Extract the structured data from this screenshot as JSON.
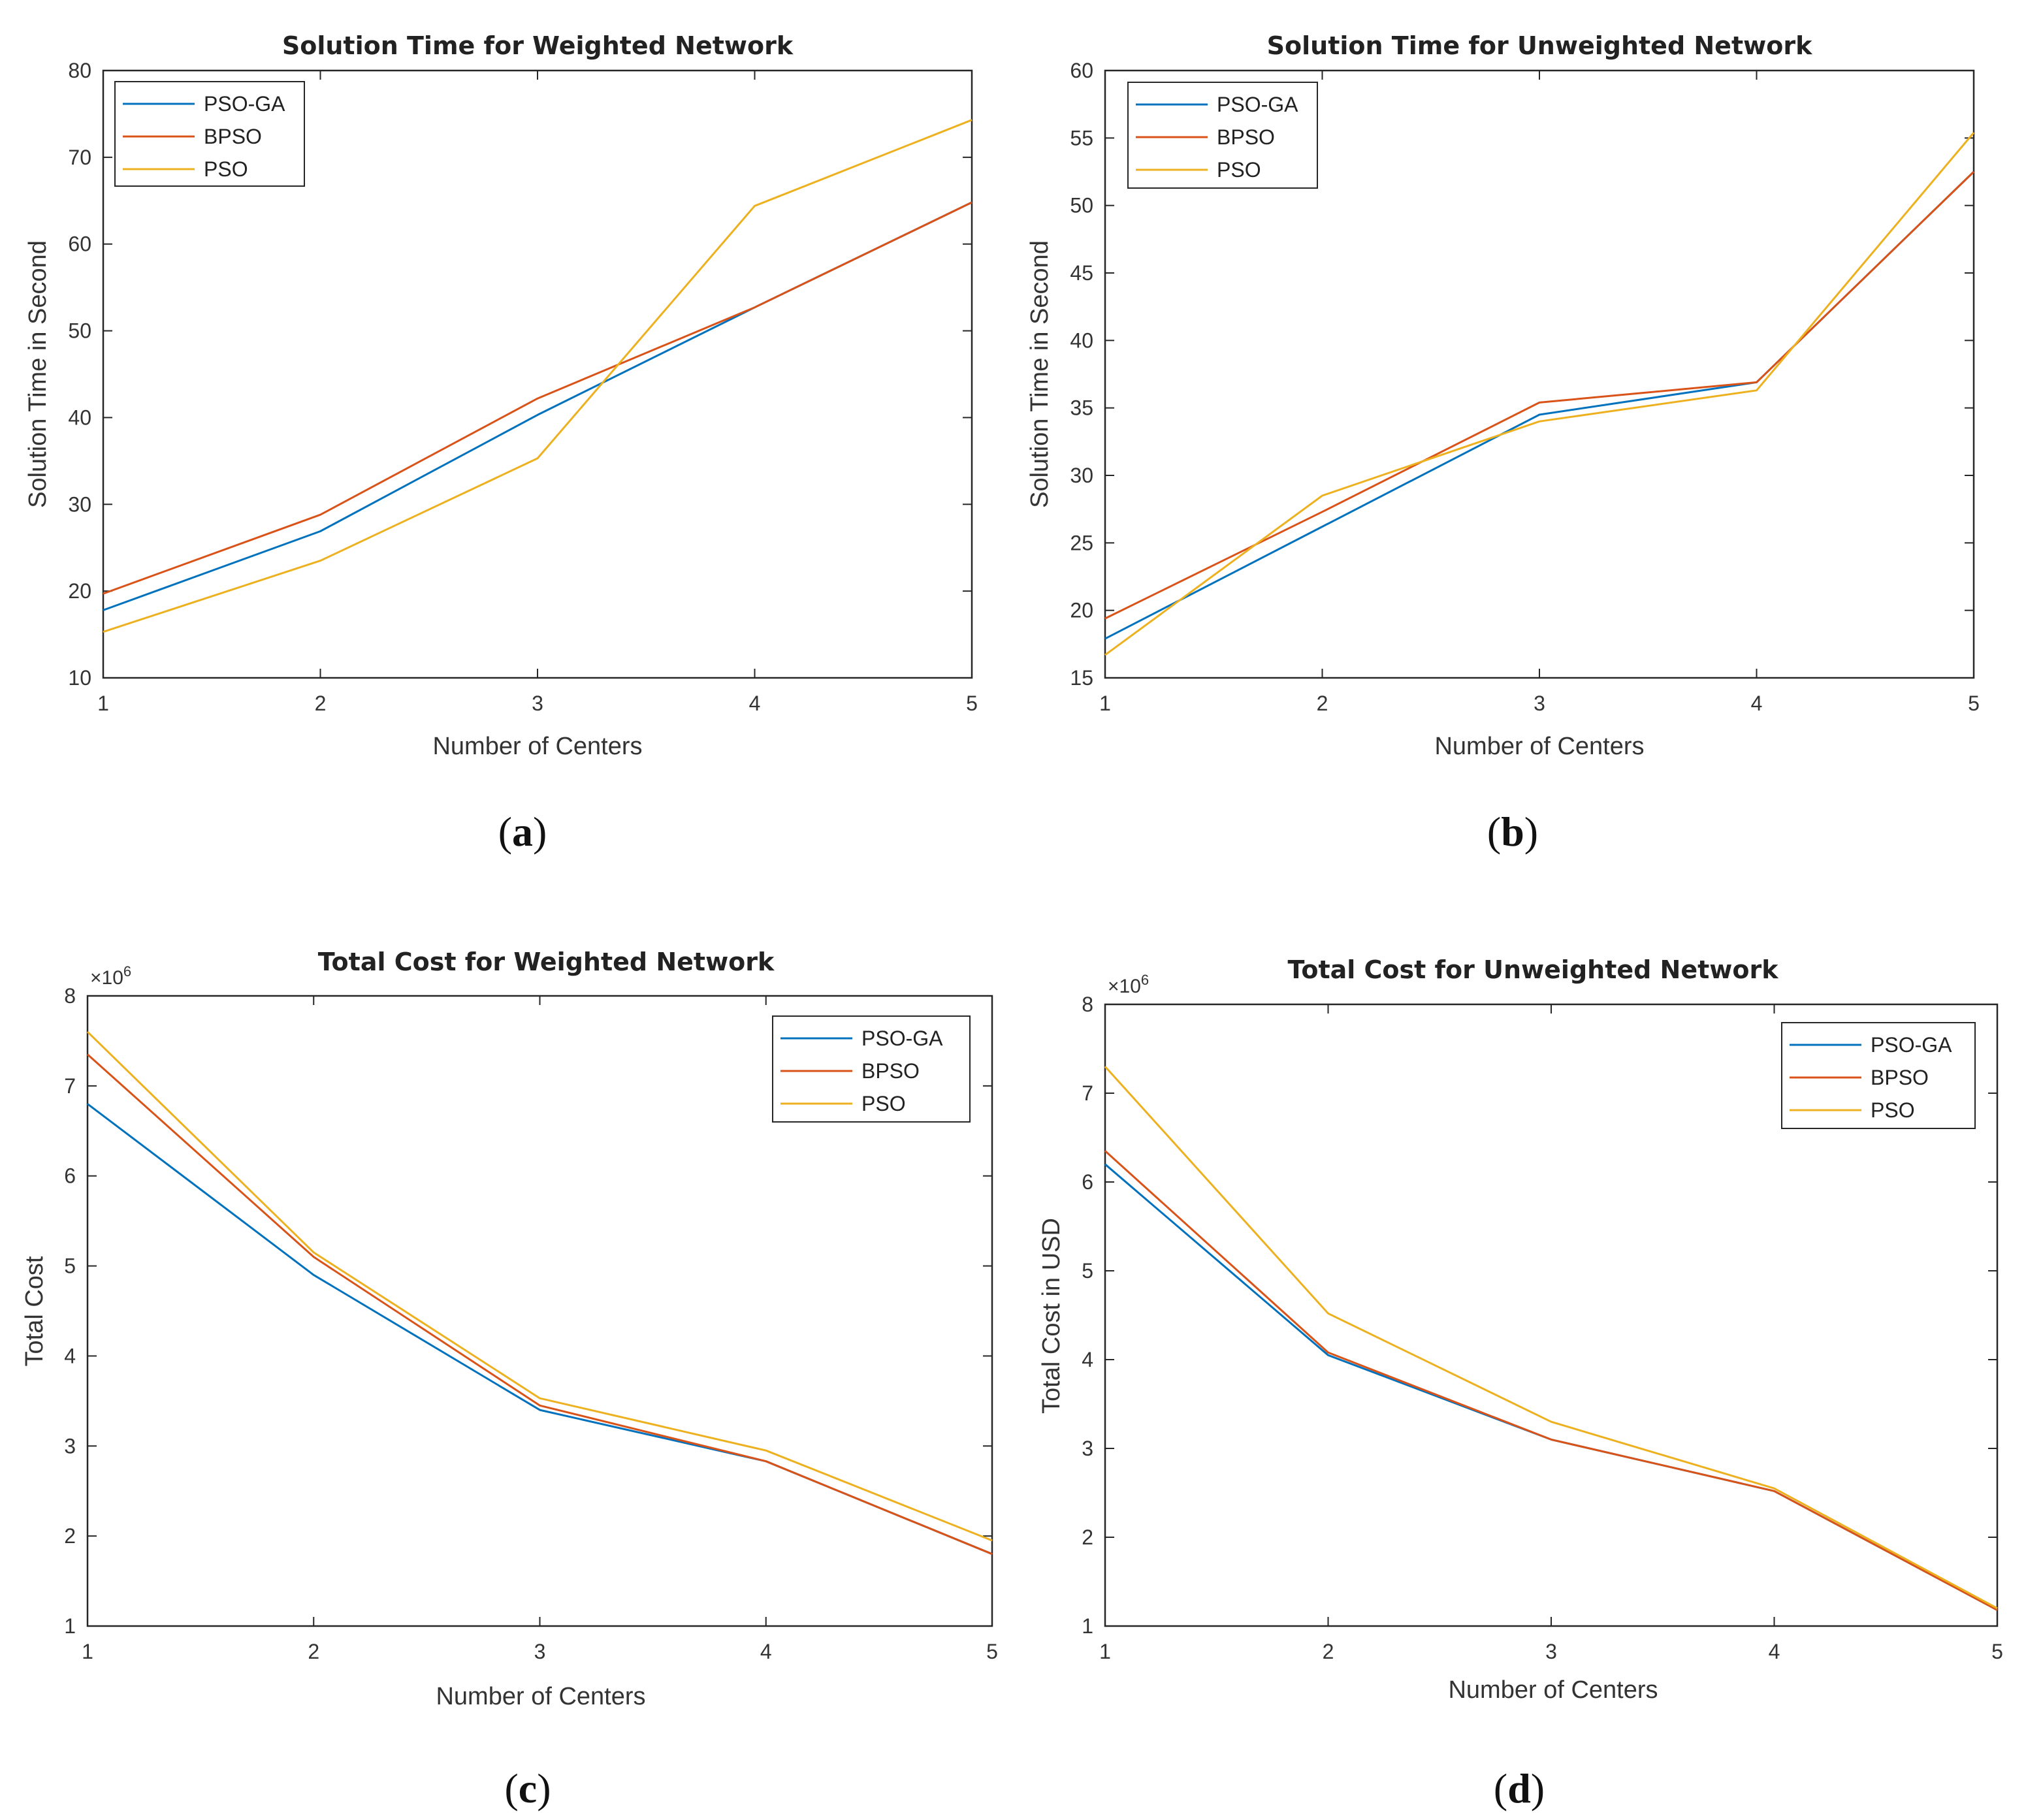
{
  "colors": {
    "pso_ga": "#0072BD",
    "bpso": "#D95319",
    "pso": "#EDB120",
    "axis": "#262626"
  },
  "chart_data": [
    {
      "id": "a",
      "type": "line",
      "panel_label": "a",
      "title": "Solution Time for Weighted Network",
      "xlabel": "Number of Centers",
      "ylabel": "Solution Time in Second",
      "xlim": [
        1,
        5
      ],
      "ylim": [
        10,
        80
      ],
      "x_ticks": [
        1,
        2,
        3,
        4,
        5
      ],
      "y_ticks": [
        10,
        20,
        30,
        40,
        50,
        60,
        70,
        80
      ],
      "exponent": "",
      "legend_position": "top-left",
      "x": [
        1,
        2,
        3,
        4,
        5
      ],
      "series": [
        {
          "name": "PSO-GA",
          "values": [
            17.8,
            26.9,
            40.3,
            52.7,
            64.8
          ]
        },
        {
          "name": "BPSO",
          "values": [
            19.7,
            28.8,
            42.2,
            52.7,
            64.8
          ]
        },
        {
          "name": "PSO",
          "values": [
            15.3,
            23.5,
            35.3,
            64.4,
            74.3
          ]
        }
      ]
    },
    {
      "id": "b",
      "type": "line",
      "panel_label": "b",
      "title": "Solution Time for Unweighted Network",
      "xlabel": "Number of Centers",
      "ylabel": "Solution Time in Second",
      "xlim": [
        1,
        5
      ],
      "ylim": [
        15,
        60
      ],
      "x_ticks": [
        1,
        2,
        3,
        4,
        5
      ],
      "y_ticks": [
        15,
        20,
        25,
        30,
        35,
        40,
        45,
        50,
        55,
        60
      ],
      "exponent": "",
      "legend_position": "top-left",
      "x": [
        1,
        2,
        3,
        4,
        5
      ],
      "series": [
        {
          "name": "PSO-GA",
          "values": [
            17.9,
            26.2,
            34.5,
            36.9,
            52.5
          ]
        },
        {
          "name": "BPSO",
          "values": [
            19.4,
            27.3,
            35.4,
            36.9,
            52.5
          ]
        },
        {
          "name": "PSO",
          "values": [
            16.7,
            28.5,
            34.0,
            36.3,
            55.4
          ]
        }
      ]
    },
    {
      "id": "c",
      "type": "line",
      "panel_label": "c",
      "title": "Total Cost for Weighted Network",
      "xlabel": "Number of Centers",
      "ylabel": "Total Cost",
      "xlim": [
        1,
        5
      ],
      "ylim": [
        1,
        8
      ],
      "x_ticks": [
        1,
        2,
        3,
        4,
        5
      ],
      "y_ticks": [
        1,
        2,
        3,
        4,
        5,
        6,
        7,
        8
      ],
      "exponent": "×10^6",
      "legend_position": "top-right",
      "x": [
        1,
        2,
        3,
        4,
        5
      ],
      "series": [
        {
          "name": "PSO-GA",
          "values": [
            6.8,
            4.9,
            3.4,
            2.83,
            1.8
          ]
        },
        {
          "name": "BPSO",
          "values": [
            7.35,
            5.1,
            3.45,
            2.83,
            1.8
          ]
        },
        {
          "name": "PSO",
          "values": [
            7.6,
            5.15,
            3.53,
            2.95,
            1.95
          ]
        }
      ]
    },
    {
      "id": "d",
      "type": "line",
      "panel_label": "d",
      "title": "Total Cost for Unweighted Network",
      "xlabel": "Number of Centers",
      "ylabel": "Total Cost in USD",
      "xlim": [
        1,
        5
      ],
      "ylim": [
        1,
        8
      ],
      "x_ticks": [
        1,
        2,
        3,
        4,
        5
      ],
      "y_ticks": [
        1,
        2,
        3,
        4,
        5,
        6,
        7,
        8
      ],
      "exponent": "×10^6",
      "legend_position": "top-right",
      "x": [
        1,
        2,
        3,
        4,
        5
      ],
      "series": [
        {
          "name": "PSO-GA",
          "values": [
            6.2,
            4.05,
            3.1,
            2.52,
            1.18
          ]
        },
        {
          "name": "BPSO",
          "values": [
            6.35,
            4.08,
            3.1,
            2.52,
            1.18
          ]
        },
        {
          "name": "PSO",
          "values": [
            7.3,
            4.52,
            3.3,
            2.55,
            1.2
          ]
        }
      ]
    }
  ]
}
